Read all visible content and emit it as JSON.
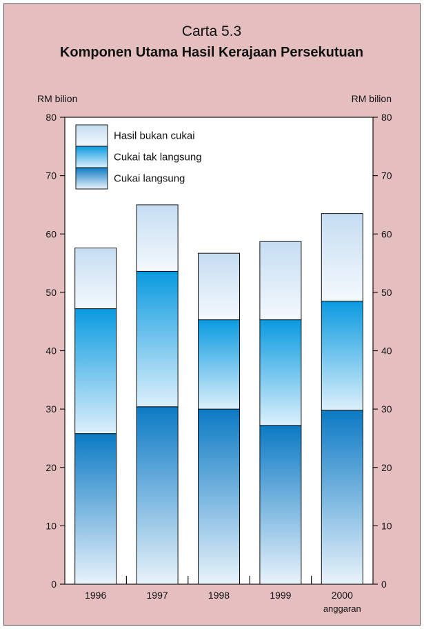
{
  "chart_data": {
    "type": "bar",
    "stacked": true,
    "title": "Carta 5.3",
    "subtitle": "Komponen Utama Hasil Kerajaan Persekutuan",
    "ylabel_left": "RM bilion",
    "ylabel_right": "RM bilion",
    "ylim": [
      0,
      80
    ],
    "yticks": [
      0,
      10,
      20,
      30,
      40,
      50,
      60,
      70,
      80
    ],
    "categories": [
      "1996",
      "1997",
      "1998",
      "1999",
      "2000"
    ],
    "category_notes": [
      "",
      "",
      "",
      "",
      "anggaran"
    ],
    "series": [
      {
        "name": "Cukai langsung",
        "values": [
          25.8,
          30.4,
          30.0,
          27.2,
          29.8
        ],
        "colors": [
          "#0b7ac4",
          "#e9f3fb"
        ]
      },
      {
        "name": "Cukai tak langsung",
        "values": [
          21.4,
          23.2,
          15.3,
          18.1,
          18.7
        ],
        "colors": [
          "#0a9ae0",
          "#dcf0fb"
        ]
      },
      {
        "name": "Hasil bukan cukai",
        "values": [
          10.4,
          11.4,
          11.4,
          13.4,
          15.0
        ],
        "colors": [
          "#c5ddf2",
          "#f4f9fd"
        ]
      }
    ],
    "legend_order": [
      "Hasil bukan cukai",
      "Cukai tak langsung",
      "Cukai langsung"
    ],
    "legend_position": "top-left",
    "grid": false
  }
}
